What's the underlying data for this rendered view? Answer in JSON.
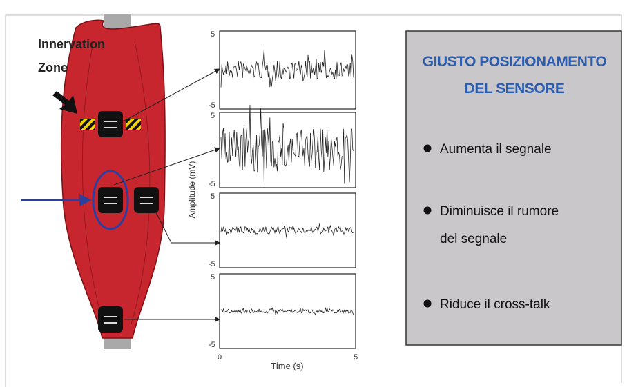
{
  "muscle": {
    "label_lines": [
      "Innervation",
      "Zone"
    ]
  },
  "plots": {
    "y_axis_label": "Amplitude (mV)",
    "x_axis_label": "Time (s)",
    "x_ticks": [
      "0",
      "5"
    ],
    "panels": [
      {
        "y_top": "5",
        "y_bottom": "-5"
      },
      {
        "y_top": "5",
        "y_bottom": "-5"
      },
      {
        "y_top": "5",
        "y_bottom": "-5"
      },
      {
        "y_top": "5",
        "y_bottom": "-5"
      }
    ]
  },
  "panel": {
    "title_lines": [
      "GIUSTO POSIZIONAMENTO",
      "DEL SENSORE"
    ],
    "bullets": [
      [
        "Aumenta il segnale"
      ],
      [
        "Diminuisce il rumore",
        "del segnale"
      ],
      [
        "Riduce il cross-talk"
      ]
    ]
  }
}
